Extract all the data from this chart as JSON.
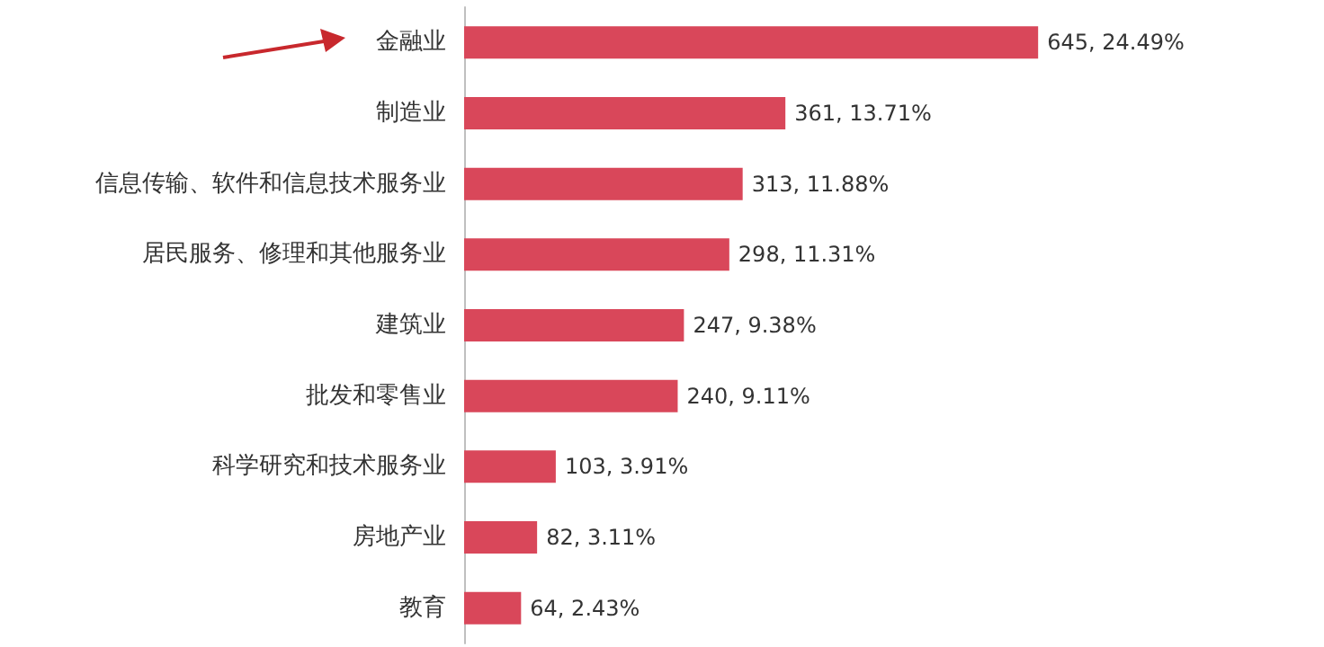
{
  "chart_data": {
    "type": "bar",
    "orientation": "horizontal",
    "categories": [
      "金融业",
      "制造业",
      "信息传输、软件和信息技术服务业",
      "居民服务、修理和其他服务业",
      "建筑业",
      "批发和零售业",
      "科学研究和技术服务业",
      "房地产业",
      "教育"
    ],
    "values": [
      645,
      361,
      313,
      298,
      247,
      240,
      103,
      82,
      64
    ],
    "value_labels": [
      "645, 24.49%",
      "361, 13.71%",
      "313, 11.88%",
      "298, 11.31%",
      "247, 9.38%",
      "240, 9.11%",
      "103, 3.91%",
      "82, 3.11%",
      "64, 2.43%"
    ],
    "color": "#d9475a",
    "grid": false
  }
}
